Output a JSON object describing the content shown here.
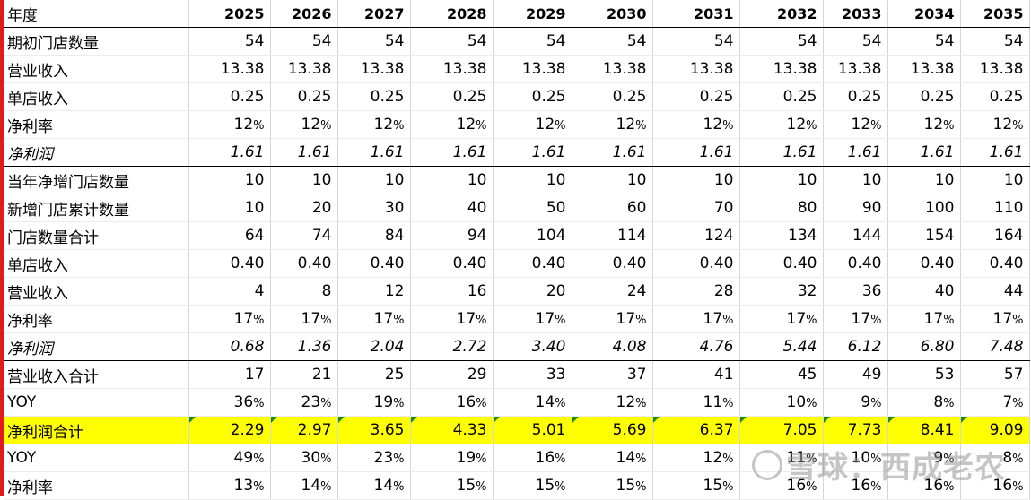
{
  "header": {
    "label": "年度",
    "years": [
      "2025",
      "2026",
      "2027",
      "2028",
      "2029",
      "2030",
      "2031",
      "2032",
      "2033",
      "2034",
      "2035"
    ]
  },
  "rows": [
    {
      "label": "期初门店数量",
      "values": [
        "54",
        "54",
        "54",
        "54",
        "54",
        "54",
        "54",
        "54",
        "54",
        "54",
        "54"
      ],
      "style": ""
    },
    {
      "label": "营业收入",
      "values": [
        "13.38",
        "13.38",
        "13.38",
        "13.38",
        "13.38",
        "13.38",
        "13.38",
        "13.38",
        "13.38",
        "13.38",
        "13.38"
      ],
      "style": ""
    },
    {
      "label": "单店收入",
      "values": [
        "0.25",
        "0.25",
        "0.25",
        "0.25",
        "0.25",
        "0.25",
        "0.25",
        "0.25",
        "0.25",
        "0.25",
        "0.25"
      ],
      "style": ""
    },
    {
      "label": "净利率",
      "values": [
        "12%",
        "12%",
        "12%",
        "12%",
        "12%",
        "12%",
        "12%",
        "12%",
        "12%",
        "12%",
        "12%"
      ],
      "style": ""
    },
    {
      "label": "净利润",
      "values": [
        "1.61",
        "1.61",
        "1.61",
        "1.61",
        "1.61",
        "1.61",
        "1.61",
        "1.61",
        "1.61",
        "1.61",
        "1.61"
      ],
      "style": "italic sec-end"
    },
    {
      "label": "当年净增门店数量",
      "values": [
        "10",
        "10",
        "10",
        "10",
        "10",
        "10",
        "10",
        "10",
        "10",
        "10",
        "10"
      ],
      "style": ""
    },
    {
      "label": "新增门店累计数量",
      "values": [
        "10",
        "20",
        "30",
        "40",
        "50",
        "60",
        "70",
        "80",
        "90",
        "100",
        "110"
      ],
      "style": ""
    },
    {
      "label": "门店数量合计",
      "values": [
        "64",
        "74",
        "84",
        "94",
        "104",
        "114",
        "124",
        "134",
        "144",
        "154",
        "164"
      ],
      "style": ""
    },
    {
      "label": "单店收入",
      "values": [
        "0.40",
        "0.40",
        "0.40",
        "0.40",
        "0.40",
        "0.40",
        "0.40",
        "0.40",
        "0.40",
        "0.40",
        "0.40"
      ],
      "style": ""
    },
    {
      "label": "营业收入",
      "values": [
        "4",
        "8",
        "12",
        "16",
        "20",
        "24",
        "28",
        "32",
        "36",
        "40",
        "44"
      ],
      "style": ""
    },
    {
      "label": "净利率",
      "values": [
        "17%",
        "17%",
        "17%",
        "17%",
        "17%",
        "17%",
        "17%",
        "17%",
        "17%",
        "17%",
        "17%"
      ],
      "style": ""
    },
    {
      "label": "净利润",
      "values": [
        "0.68",
        "1.36",
        "2.04",
        "2.72",
        "3.40",
        "4.08",
        "4.76",
        "5.44",
        "6.12",
        "6.80",
        "7.48"
      ],
      "style": "italic sec-end"
    },
    {
      "label": "营业收入合计",
      "values": [
        "17",
        "21",
        "25",
        "29",
        "33",
        "37",
        "41",
        "45",
        "49",
        "53",
        "57"
      ],
      "style": ""
    },
    {
      "label": "YOY",
      "values": [
        "36%",
        "23%",
        "19%",
        "16%",
        "14%",
        "12%",
        "11%",
        "10%",
        "9%",
        "8%",
        "7%"
      ],
      "style": ""
    },
    {
      "label": "净利润合计",
      "values": [
        "2.29",
        "2.97",
        "3.65",
        "4.33",
        "5.01",
        "5.69",
        "6.37",
        "7.05",
        "7.73",
        "8.41",
        "9.09"
      ],
      "style": "hl"
    },
    {
      "label": "YOY",
      "values": [
        "49%",
        "30%",
        "23%",
        "19%",
        "16%",
        "14%",
        "12%",
        "11%",
        "10%",
        "9%",
        "8%"
      ],
      "style": ""
    },
    {
      "label": "净利率",
      "values": [
        "13%",
        "14%",
        "14%",
        "15%",
        "15%",
        "15%",
        "15%",
        "16%",
        "16%",
        "16%",
        "16%"
      ],
      "style": ""
    }
  ],
  "watermark": {
    "text": "雪球：西成老农"
  },
  "colors": {
    "highlight": "#ffff00",
    "left_bar": "#e11a1a",
    "corner_marker": "#1a8a1a"
  }
}
